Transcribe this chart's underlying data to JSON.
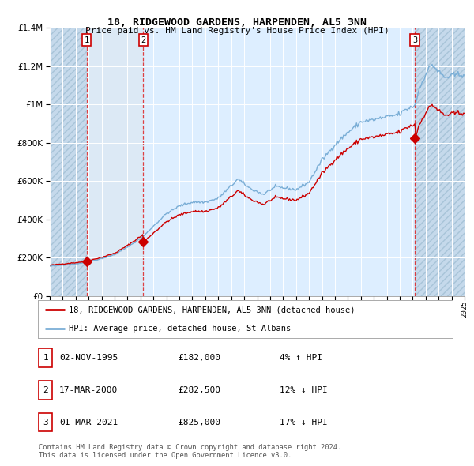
{
  "title": "18, RIDGEWOOD GARDENS, HARPENDEN, AL5 3NN",
  "subtitle": "Price paid vs. HM Land Registry's House Price Index (HPI)",
  "ylim": [
    0,
    1400000
  ],
  "yticks": [
    0,
    200000,
    400000,
    600000,
    800000,
    1000000,
    1200000,
    1400000
  ],
  "x_start_year": 1993,
  "x_end_year": 2025,
  "sale_dates_dec": [
    1995.84,
    2000.21,
    2021.17
  ],
  "sale_prices": [
    182000,
    282500,
    825000
  ],
  "sale_labels": [
    "1",
    "2",
    "3"
  ],
  "legend_house_label": "18, RIDGEWOOD GARDENS, HARPENDEN, AL5 3NN (detached house)",
  "legend_hpi_label": "HPI: Average price, detached house, St Albans",
  "table_rows": [
    {
      "num": "1",
      "date": "02-NOV-1995",
      "price": "£182,000",
      "note": "4% ↑ HPI"
    },
    {
      "num": "2",
      "date": "17-MAR-2000",
      "price": "£282,500",
      "note": "12% ↓ HPI"
    },
    {
      "num": "3",
      "date": "01-MAR-2021",
      "price": "£825,000",
      "note": "17% ↓ HPI"
    }
  ],
  "footer": "Contains HM Land Registry data © Crown copyright and database right 2024.\nThis data is licensed under the Open Government Licence v3.0.",
  "house_color": "#cc0000",
  "hpi_color": "#7aaed6",
  "background_color": "#ffffff",
  "plot_bg_color": "#ddeeff"
}
